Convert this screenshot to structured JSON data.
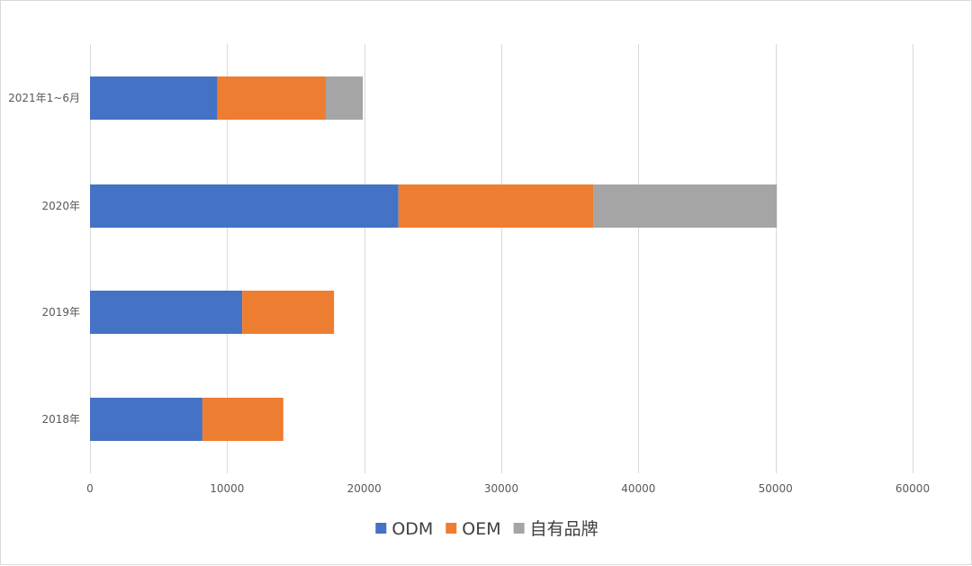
{
  "chart_data": {
    "type": "bar",
    "orientation": "horizontal",
    "stacked": true,
    "categories": [
      "2021年1~6月",
      "2020年",
      "2019年",
      "2018年"
    ],
    "series": [
      {
        "name": "ODM",
        "color": "#4472C4",
        "values": [
          9300,
          22500,
          11100,
          8200
        ]
      },
      {
        "name": "OEM",
        "color": "#ED7D31",
        "values": [
          7900,
          14200,
          6700,
          5900
        ]
      },
      {
        "name": "自有品牌",
        "color": "#A5A5A5",
        "values": [
          2700,
          13400,
          0,
          0
        ]
      }
    ],
    "xlim": [
      0,
      60000
    ],
    "xticks": [
      0,
      10000,
      20000,
      30000,
      40000,
      50000,
      60000
    ],
    "xtick_labels": [
      "0",
      "10000",
      "20000",
      "30000",
      "40000",
      "50000",
      "60000"
    ],
    "grid": "vertical",
    "legend_position": "bottom",
    "title": "",
    "xlabel": "",
    "ylabel": ""
  }
}
